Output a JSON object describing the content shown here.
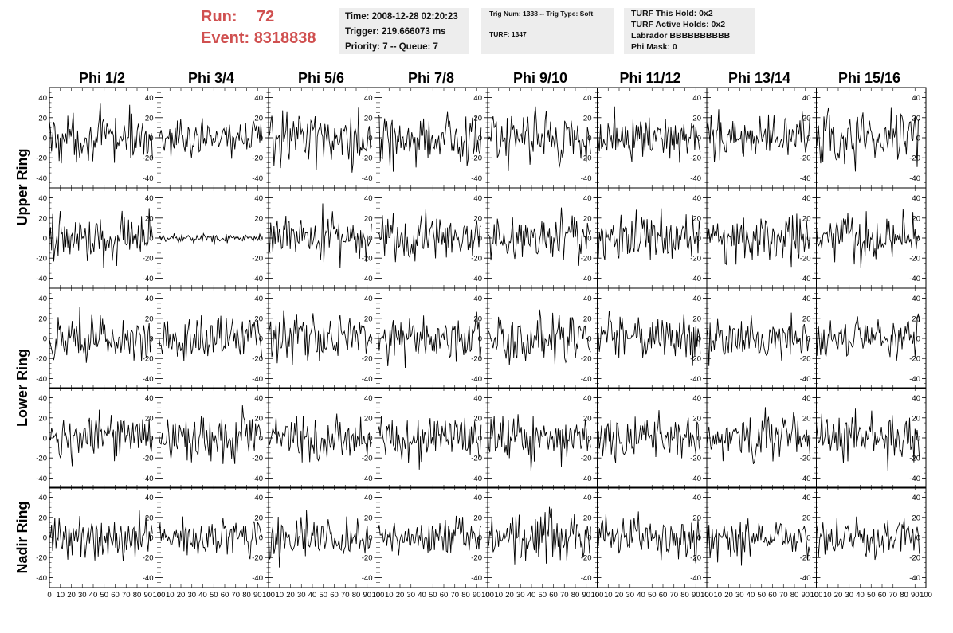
{
  "header": {
    "run_label": "Run:",
    "run_value": "72",
    "event_label": "Event:",
    "event_value": "8318838",
    "run_color": "#d05050"
  },
  "info_time": {
    "time": "Time: 2008-12-28 02:20:23",
    "trigger": "Trigger: 219.666073 ms",
    "priority": "Priority: 7 -- Queue: 7"
  },
  "info_trig": {
    "trig": "Trig Num: 1338 -- Trig Type: Soft",
    "turf": "TURF: 1347"
  },
  "info_turf": {
    "this_hold": "TURF This Hold: 0x2",
    "active_holds": "TURF Active Holds: 0x2",
    "labrador": "Labrador BBBBBBBBBB",
    "phi_mask": "Phi Mask: 0"
  },
  "phi_labels": [
    "Phi 1/2",
    "Phi 3/4",
    "Phi 5/6",
    "Phi 7/8",
    "Phi 9/10",
    "Phi 11/12",
    "Phi 13/14",
    "Phi 15/16"
  ],
  "ring_labels": [
    "Upper Ring",
    "Lower Ring",
    "Nadir Ring"
  ],
  "chart_data": {
    "type": "line",
    "grid": "8 columns x 5 rows of waveform panels",
    "columns": [
      "Phi 1/2",
      "Phi 3/4",
      "Phi 5/6",
      "Phi 7/8",
      "Phi 9/10",
      "Phi 11/12",
      "Phi 13/14",
      "Phi 15/16"
    ],
    "row_groups": [
      {
        "name": "Upper Ring",
        "rows": 2
      },
      {
        "name": "Lower Ring",
        "rows": 2
      },
      {
        "name": "Nadir Ring",
        "rows": 1
      }
    ],
    "xlim": [
      0,
      100
    ],
    "ylim": [
      -50,
      50
    ],
    "x_ticks": [
      "0",
      "10",
      "20",
      "30",
      "40",
      "50",
      "60",
      "70",
      "80",
      "90",
      "100"
    ],
    "y_ticks": [
      "-40",
      "-20",
      "0",
      "20",
      "40"
    ],
    "samples_per_panel": 96,
    "panel_amplitude": [
      [
        12,
        9,
        13,
        12,
        14,
        10,
        12,
        13
      ],
      [
        12,
        2.5,
        12,
        13,
        12,
        12,
        12,
        12
      ],
      [
        12,
        11,
        12,
        12,
        14,
        12,
        11,
        10
      ],
      [
        11,
        13,
        12,
        12,
        11,
        11,
        11,
        12
      ],
      [
        12,
        9,
        11,
        10,
        12,
        11,
        11,
        10
      ]
    ],
    "line_color": "#000000"
  }
}
